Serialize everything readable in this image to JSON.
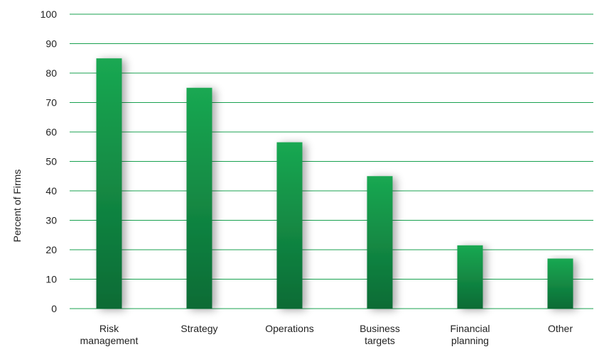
{
  "chart_data": {
    "type": "bar",
    "title": "",
    "xlabel": "",
    "ylabel": "Percent of Firms",
    "ylim": [
      0,
      100
    ],
    "yticks": [
      0,
      10,
      20,
      30,
      40,
      50,
      60,
      70,
      80,
      90,
      100
    ],
    "categories": [
      [
        "Risk",
        "management"
      ],
      [
        "Strategy"
      ],
      [
        "Operations"
      ],
      [
        "Business",
        "targets"
      ],
      [
        "Financial",
        "planning"
      ],
      [
        "Other"
      ]
    ],
    "values": [
      85,
      75,
      56.5,
      45,
      21.5,
      17
    ],
    "grid": true,
    "legend": "none",
    "colors": {
      "bar_top": "#1aa852",
      "bar_bottom": "#0b6b35",
      "grid": "#18a14f",
      "text": "#222222"
    }
  }
}
